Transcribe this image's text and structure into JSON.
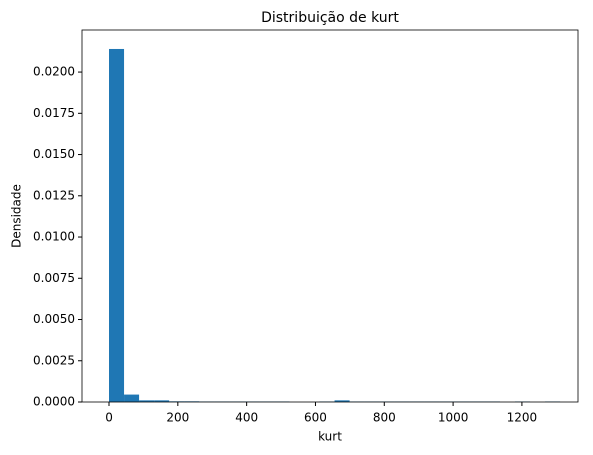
{
  "chart_data": {
    "type": "histogram",
    "title": "Distribuição de kurt",
    "x_label": "kurt",
    "y_label": "Densidade",
    "color": "#1f77b4",
    "bins": [
      0,
      43.7,
      87.4,
      131.1,
      174.8,
      218.5,
      262.2,
      305.9,
      349.6,
      393.3,
      437,
      480.7,
      524.4,
      568.1,
      611.8,
      655.5,
      699.2,
      742.9,
      786.6,
      830.3,
      874,
      917.7,
      961.4,
      1005.1,
      1048.8,
      1092.5,
      1136.2,
      1179.9,
      1223.6,
      1267.3,
      1311
    ],
    "counts": [
      0.0214,
      0.00045,
      0.0001,
      0.0001,
      4e-05,
      4e-05,
      3e-05,
      3e-05,
      3e-05,
      3e-05,
      3e-05,
      3e-05,
      0,
      0,
      3e-05,
      0.0001,
      3e-05,
      3e-05,
      3e-05,
      3e-05,
      3e-05,
      3e-05,
      3e-05,
      3e-05,
      3e-05,
      3e-05,
      0,
      3e-05,
      0,
      3e-05
    ],
    "xlim": [
      -78.5,
      1363
    ],
    "xticks": [
      0,
      200,
      400,
      600,
      800,
      1000,
      1200
    ],
    "ylim": [
      0,
      0.02255
    ],
    "yticks": [
      {
        "value": 0,
        "label": "0.0000"
      },
      {
        "value": 0.0025,
        "label": "0.0025"
      },
      {
        "value": 0.005,
        "label": "0.0050"
      },
      {
        "value": 0.0075,
        "label": "0.0075"
      },
      {
        "value": 0.01,
        "label": "0.0100"
      },
      {
        "value": 0.0125,
        "label": "0.0125"
      },
      {
        "value": 0.015,
        "label": "0.0150"
      },
      {
        "value": 0.0175,
        "label": "0.0175"
      },
      {
        "value": 0.02,
        "label": "0.0200"
      }
    ]
  }
}
